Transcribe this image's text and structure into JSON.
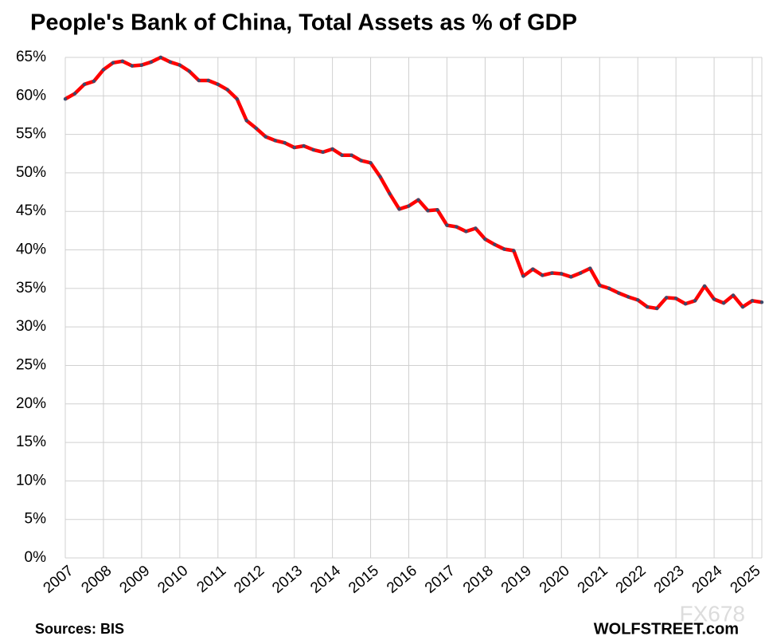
{
  "chart_data": {
    "type": "line",
    "title": "People's Bank of China, Total Assets as % of GDP",
    "source": "Sources: BIS",
    "credit": "WOLFSTREET.com",
    "watermark": "FX678",
    "color": "#ff0000",
    "marker_color": "#3b4a6b",
    "grid": true,
    "x": [
      2007,
      2007.25,
      2007.5,
      2007.75,
      2008,
      2008.25,
      2008.5,
      2008.75,
      2009,
      2009.25,
      2009.5,
      2009.75,
      2010,
      2010.25,
      2010.5,
      2010.75,
      2011,
      2011.25,
      2011.5,
      2011.75,
      2012,
      2012.25,
      2012.5,
      2012.75,
      2013,
      2013.25,
      2013.5,
      2013.75,
      2014,
      2014.25,
      2014.5,
      2014.75,
      2015,
      2015.25,
      2015.5,
      2015.75,
      2016,
      2016.25,
      2016.5,
      2016.75,
      2017,
      2017.25,
      2017.5,
      2017.75,
      2018,
      2018.25,
      2018.5,
      2018.75,
      2019,
      2019.25,
      2019.5,
      2019.75,
      2020,
      2020.25,
      2020.5,
      2020.75,
      2021,
      2021.25,
      2021.5,
      2021.75,
      2022,
      2022.25,
      2022.5,
      2022.75,
      2023,
      2023.25,
      2023.5,
      2023.75,
      2024,
      2024.25,
      2024.5,
      2024.75,
      2025,
      2025.25
    ],
    "values": [
      59.6,
      60.3,
      61.5,
      61.9,
      63.4,
      64.3,
      64.5,
      63.9,
      64.0,
      64.4,
      65.0,
      64.4,
      64.0,
      63.2,
      62.0,
      62.0,
      61.5,
      60.8,
      59.6,
      56.8,
      55.8,
      54.7,
      54.2,
      53.9,
      53.3,
      53.5,
      53.0,
      52.7,
      53.1,
      52.3,
      52.3,
      51.6,
      51.3,
      49.5,
      47.3,
      45.3,
      45.7,
      46.5,
      45.1,
      45.2,
      43.2,
      43.0,
      42.4,
      42.8,
      41.4,
      40.7,
      40.1,
      39.9,
      36.6,
      37.5,
      36.7,
      37.0,
      36.9,
      36.5,
      37.0,
      37.6,
      35.4,
      35.0,
      34.4,
      33.9,
      33.5,
      32.6,
      32.4,
      33.8,
      33.7,
      33.0,
      33.4,
      35.3,
      33.6,
      33.1,
      34.1,
      32.6,
      33.4,
      33.2
    ],
    "xlim": [
      2007,
      2025.25
    ],
    "xticks": [
      2007,
      2008,
      2009,
      2010,
      2011,
      2012,
      2013,
      2014,
      2015,
      2016,
      2017,
      2018,
      2019,
      2020,
      2021,
      2022,
      2023,
      2024,
      2025
    ],
    "ylim": [
      0,
      65
    ],
    "yticks": [
      {
        "value": 0,
        "label": "0%"
      },
      {
        "value": 5,
        "label": "5%"
      },
      {
        "value": 10,
        "label": "10%"
      },
      {
        "value": 15,
        "label": "15%"
      },
      {
        "value": 20,
        "label": "20%"
      },
      {
        "value": 25,
        "label": "25%"
      },
      {
        "value": 30,
        "label": "30%"
      },
      {
        "value": 35,
        "label": "35%"
      },
      {
        "value": 40,
        "label": "40%"
      },
      {
        "value": 45,
        "label": "45%"
      },
      {
        "value": 50,
        "label": "50%"
      },
      {
        "value": 55,
        "label": "55%"
      },
      {
        "value": 60,
        "label": "60%"
      },
      {
        "value": 65,
        "label": "65%"
      }
    ]
  }
}
